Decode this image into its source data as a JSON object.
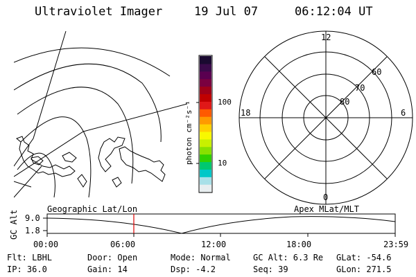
{
  "header": {
    "title": "Ultraviolet Imager",
    "date": "19 Jul 07",
    "time": "06:12:04 UT"
  },
  "colorbar": {
    "unit_label": "photon cm⁻²s⁻¹",
    "ticks": [
      "100",
      "10"
    ],
    "colors": [
      "#1a0a30",
      "#3a0a4a",
      "#5a0050",
      "#7a0040",
      "#a00018",
      "#c00000",
      "#e01818",
      "#ff5a00",
      "#ff9a00",
      "#ffd000",
      "#f8f800",
      "#c8f000",
      "#88e000",
      "#30d000",
      "#00c870",
      "#00c8c8",
      "#a8e0e8",
      "#e8eef0"
    ]
  },
  "polar_plot": {
    "labels": {
      "top": "12",
      "left": "18",
      "right": "6",
      "bottom": "0"
    },
    "rings": [
      "60",
      "70",
      "80"
    ]
  },
  "timeline": {
    "left_caption": "Geographic Lat/Lon",
    "right_caption": "Apex  MLat/MLT",
    "y_axis_label": "GC Alt",
    "y_ticks": [
      "9.0",
      "1.8"
    ],
    "x_ticks": [
      "00:00",
      "06:00",
      "12:00",
      "18:00",
      "23:59"
    ],
    "cursor_color": "#e00000"
  },
  "footer": {
    "row1": [
      "Flt: LBHL",
      "Door: Open",
      "Mode: Normal",
      "GC Alt: 6.3 Re",
      "GLat: -54.6"
    ],
    "row2": [
      "IP: 36.0",
      "Gain: 14",
      "Dsp:   -4.2",
      "Seq: 39",
      "GLon: 271.5"
    ]
  }
}
